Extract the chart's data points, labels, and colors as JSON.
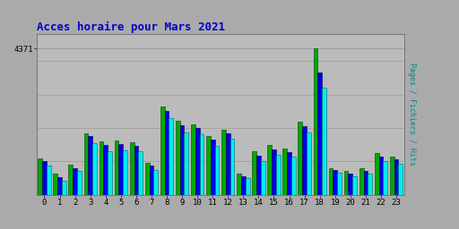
{
  "title": "Acces horaire pour Mars 2021",
  "ylabel": "Pages / Fichiers / Hits",
  "hours": [
    0,
    1,
    2,
    3,
    4,
    5,
    6,
    7,
    8,
    9,
    10,
    11,
    12,
    13,
    14,
    15,
    16,
    17,
    18,
    19,
    20,
    21,
    22,
    23
  ],
  "max_tick_label": "4371",
  "pages": [
    1100,
    620,
    900,
    1850,
    1600,
    1620,
    1580,
    950,
    2650,
    2200,
    2100,
    1750,
    1950,
    640,
    1300,
    1480,
    1380,
    2180,
    4371,
    800,
    700,
    780,
    1250,
    1150
  ],
  "fichiers": [
    1000,
    530,
    800,
    1750,
    1500,
    1520,
    1470,
    860,
    2520,
    2080,
    1990,
    1640,
    1840,
    560,
    1160,
    1360,
    1280,
    2040,
    3650,
    730,
    640,
    710,
    1150,
    1060
  ],
  "hits": [
    860,
    430,
    700,
    1530,
    1300,
    1330,
    1300,
    740,
    2300,
    1870,
    1800,
    1470,
    1680,
    490,
    1000,
    1190,
    1140,
    1870,
    3200,
    650,
    560,
    620,
    1000,
    920
  ],
  "color_pages": "#00AA00",
  "color_fichiers": "#0000EE",
  "color_hits": "#00EEEE",
  "bg_color": "#AAAAAA",
  "plot_bg": "#BBBBBB",
  "title_color": "#0000CC",
  "ylabel_color": "#008888",
  "bar_width": 0.28,
  "ylim": [
    0,
    4800
  ],
  "ytick_value": 4371,
  "grid_color": "#999999",
  "figsize": [
    5.12,
    2.56
  ],
  "dpi": 100
}
